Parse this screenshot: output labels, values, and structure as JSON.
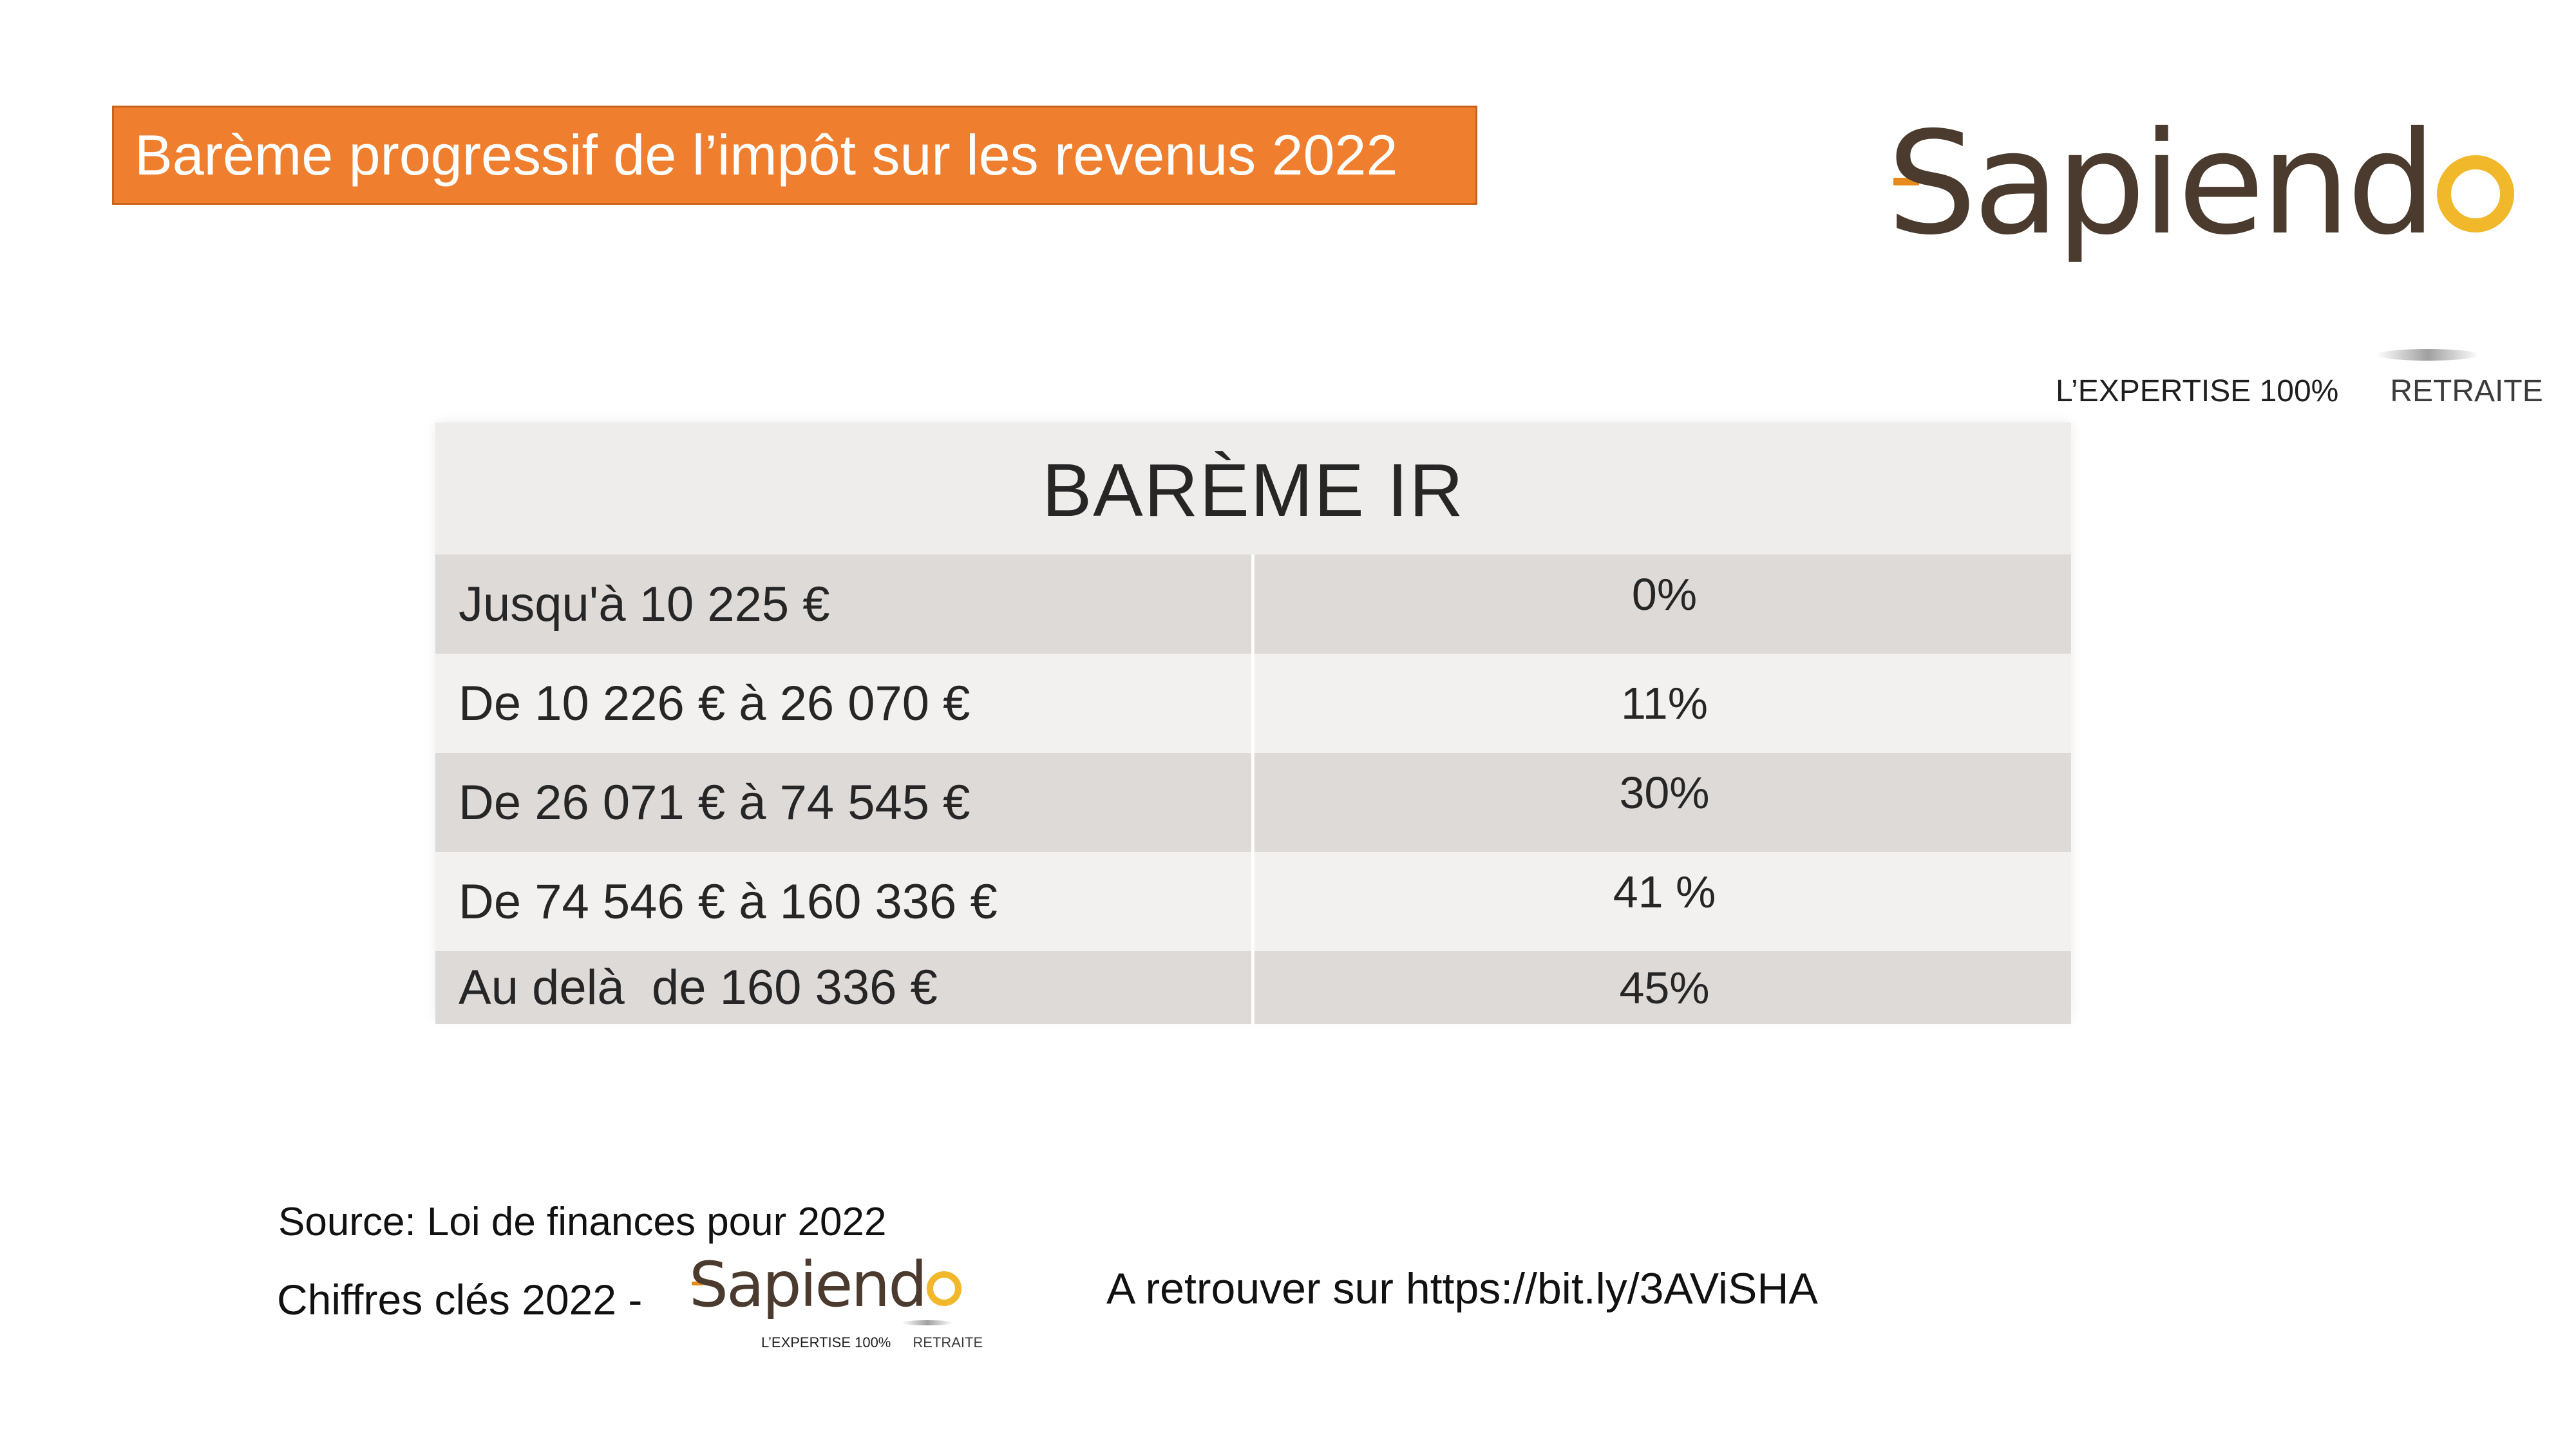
{
  "header": {
    "title": "Barème progressif de l’impôt sur les revenus 2022"
  },
  "logo": {
    "wordmark": "Sapiend",
    "tagline_left": "L’EXPERTISE 100%",
    "tagline_right": "RETRAITE",
    "brand_color": "#4a3b2e",
    "accent_color": "#f1b82b"
  },
  "table": {
    "title": "BARÈME IR",
    "rows": [
      {
        "bracket": "Jusqu'à 10 225 €",
        "rate": "0%"
      },
      {
        "bracket": "De 10 226 € à 26 070 €",
        "rate": "11%"
      },
      {
        "bracket": "De 26 071 € à 74 545 €",
        "rate": "30%"
      },
      {
        "bracket": "De 74 546 € à 160 336 €",
        "rate": "41 %"
      },
      {
        "bracket": "Au delà  de 160 336 €",
        "rate": "45%"
      }
    ]
  },
  "footer": {
    "source": "Source: Loi de finances pour 2022",
    "chiffres": "Chiffres clés 2022 -",
    "retrouver": "A retrouver sur https://bit.ly/3AViSHA"
  },
  "colors": {
    "title_bg": "#ef7f2e",
    "row_dark": "#dedad7",
    "row_light": "#f3f1f0"
  }
}
